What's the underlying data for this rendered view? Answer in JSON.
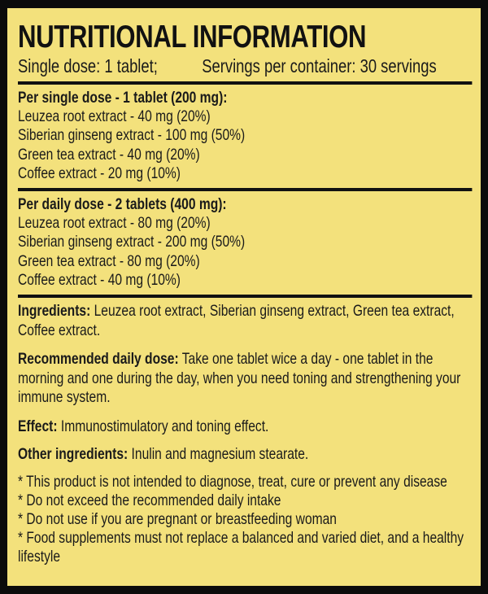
{
  "title": "NUTRITIONAL INFORMATION",
  "serving": {
    "single_dose": "Single dose: 1 tablet;",
    "servings": "Servings per container:  30 servings"
  },
  "single": {
    "heading": "Per single dose - 1 tablet (200 mg):",
    "items": [
      "Leuzea root extract - 40 mg (20%)",
      "Siberian ginseng extract - 100 mg (50%)",
      "Green tea extract - 40 mg (20%)",
      "Coffee extract - 20 mg (10%)"
    ]
  },
  "daily": {
    "heading": "Per daily dose - 2 tablets (400 mg):",
    "items": [
      "Leuzea root extract  - 80 mg (20%)",
      "Siberian ginseng extract - 200 mg (50%)",
      "Green tea extract - 80 mg (20%)",
      "Coffee extract - 40 mg (10%)"
    ]
  },
  "ingredients": {
    "label": "Ingredients:",
    "text": " Leuzea root extract, Siberian ginseng extract, Green tea extract, Coffee extract."
  },
  "recommended": {
    "label": "Recommended daily dose:",
    "text": " Take one tablet wice a day - one tablet in the morning and one during the day, when you need toning and strengthening your immune system."
  },
  "effect": {
    "label": "Effect:",
    "text": " Immunostimulatory and toning effect."
  },
  "other": {
    "label": "Other ingredients:",
    "text": " Inulin and magnesium stearate."
  },
  "disclaimers": [
    "* This product is not intended to diagnose, treat, cure or prevent any disease",
    "* Do not exceed the recommended daily intake",
    "* Do not use if you are pregnant or breastfeeding woman",
    "* Food supplements must not replace a balanced and varied diet, and a healthy lifestyle"
  ],
  "colors": {
    "background": "#f3e17c",
    "border": "#0b0b0b",
    "text": "#1a1a1a"
  }
}
